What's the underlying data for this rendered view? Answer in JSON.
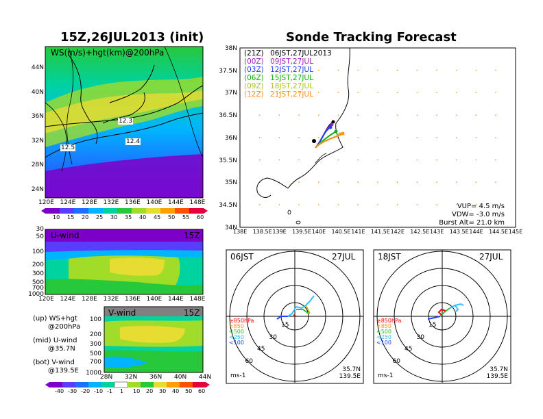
{
  "left_panel": {
    "title": "15Z,26JUL2013 (init)",
    "ws_map": {
      "label": "WS(m/s)+hgt(km)@200hPa",
      "lat_ticks": [
        "44N",
        "40N",
        "36N",
        "32N",
        "28N",
        "24N"
      ],
      "lon_ticks": [
        "120E",
        "124E",
        "128E",
        "132E",
        "136E",
        "140E",
        "144E",
        "148E"
      ],
      "contour_labels": [
        "12.3",
        "12.4",
        "12.5"
      ],
      "colorbar_ticks": [
        "10",
        "15",
        "20",
        "25",
        "30",
        "35",
        "40",
        "45",
        "50",
        "55",
        "60"
      ]
    },
    "u_wind": {
      "label": "U-wind",
      "time": "15Z",
      "p_ticks": [
        "30",
        "50",
        "100",
        "200",
        "300",
        "500",
        "700",
        "1000"
      ],
      "lon_ticks": [
        "120E",
        "124E",
        "128E",
        "132E",
        "136E",
        "140E",
        "144E",
        "148E"
      ]
    },
    "v_wind": {
      "label": "V-wind",
      "time": "15Z",
      "p_ticks": [
        "100",
        "200",
        "300",
        "500",
        "700",
        "1000"
      ],
      "lat_ticks": [
        "28N",
        "32N",
        "36N",
        "40N",
        "44N"
      ]
    },
    "notes": [
      {
        "a": "(up) WS+hgt",
        "b": "@200hPa"
      },
      {
        "a": "(mid) U-wind",
        "b": "@35.7N"
      },
      {
        "a": "(bot) V-wind",
        "b": "@139.5E"
      }
    ],
    "bottom_colorbar_ticks": [
      "-40",
      "-30",
      "-20",
      "-10",
      "-1",
      "1",
      "10",
      "20",
      "30",
      "40",
      "50",
      "60"
    ]
  },
  "right_panel": {
    "title": "Sonde Tracking Forecast",
    "legend": [
      {
        "z": "(21Z)",
        "t": "06JST,27JUL2013",
        "color": "#000000"
      },
      {
        "z": "(00Z)",
        "t": "09JST,27JUL",
        "color": "#a020c0"
      },
      {
        "z": "(03Z)",
        "t": "12JST,27JUL",
        "color": "#2040ff"
      },
      {
        "z": "(06Z)",
        "t": "15JST,27JUL",
        "color": "#10b010"
      },
      {
        "z": "(09Z)",
        "t": "18JST,27JUL",
        "color": "#b0c020"
      },
      {
        "z": "(12Z)",
        "t": "21JST,27JUL",
        "color": "#ff9020"
      }
    ],
    "lat_ticks": [
      "38N",
      "37.5N",
      "37N",
      "36.5N",
      "36N",
      "35.5N",
      "35N",
      "34.5N",
      "34N"
    ],
    "lon_ticks": [
      "138E",
      "138.5E",
      "139E",
      "139.5E",
      "140E",
      "140.5E",
      "141E",
      "141.5E",
      "142E",
      "142.5E",
      "143E",
      "143.5E",
      "144E",
      "144.5E",
      "145E"
    ],
    "params": [
      "VUP= 4.5 m/s",
      "VDW= -3.0 m/s",
      "Burst Alt= 21.0 km"
    ],
    "hodo_left": {
      "time": "06JST",
      "date": "27JUL",
      "rings": [
        "15",
        "30",
        "45",
        "60"
      ],
      "levels": [
        "≥850hPa",
        "<850",
        "<500",
        "<250",
        "<100"
      ],
      "unit": "ms-1",
      "lat": "35.7N",
      "lon": "139.5E"
    },
    "hodo_right": {
      "time": "18JST",
      "date": "27JUL",
      "rings": [
        "15",
        "30",
        "45",
        "60"
      ],
      "levels": [
        "≥850hPa",
        "<850",
        "<500",
        "<250",
        "<100"
      ],
      "unit": "ms-1",
      "lat": "35.7N",
      "lon": "139.5E"
    }
  },
  "colors": {
    "ws_scale": [
      "#7d00c8",
      "#5a3cff",
      "#1e6eff",
      "#00b4ff",
      "#00d2a0",
      "#28c83c",
      "#a0dc28",
      "#e6dc32",
      "#ffa000",
      "#ff5000",
      "#e6003c"
    ],
    "level_colors": [
      "#ff0000",
      "#ff9020",
      "#30c030",
      "#30c0ff",
      "#2040ff"
    ]
  }
}
